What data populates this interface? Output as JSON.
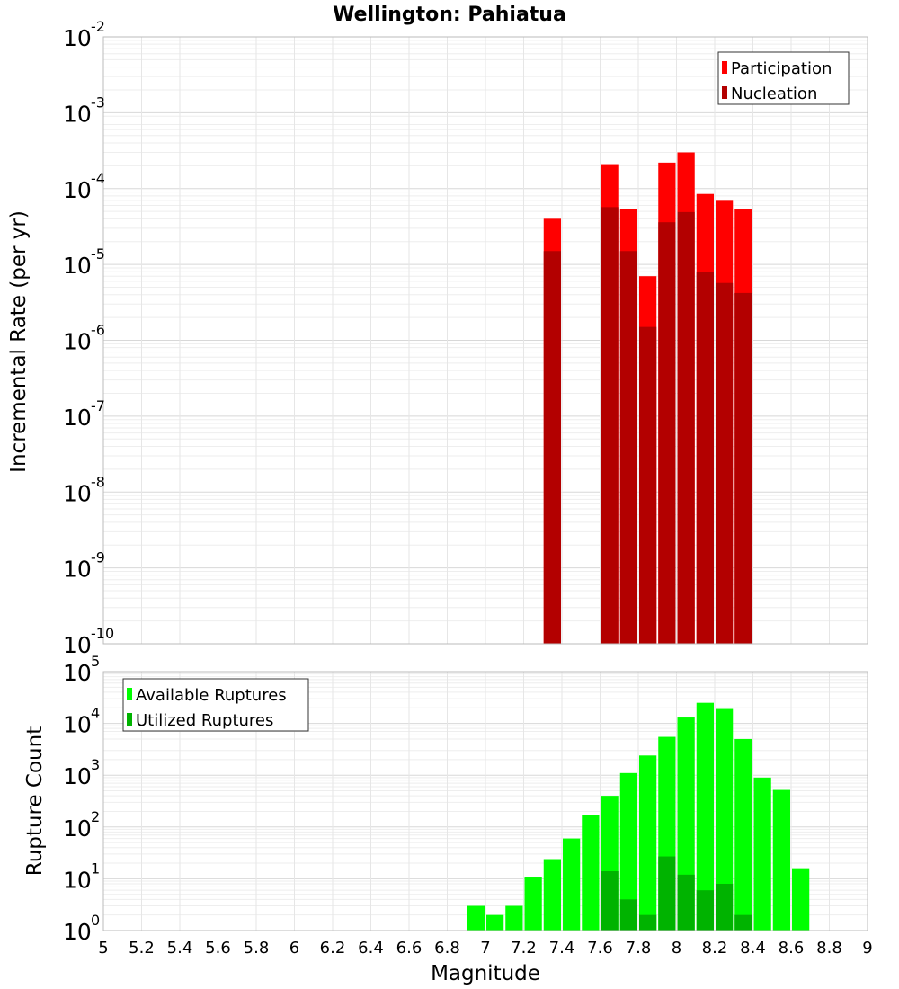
{
  "chart_data": {
    "title": "Wellington: Pahiatua",
    "xlabel": "Magnitude",
    "xlim": [
      5,
      9
    ],
    "xticks": [
      "5",
      "5.2",
      "5.4",
      "5.6",
      "5.8",
      "6",
      "6.2",
      "6.4",
      "6.6",
      "6.8",
      "7",
      "7.2",
      "7.4",
      "7.6",
      "7.8",
      "8",
      "8.2",
      "8.4",
      "8.6",
      "8.8",
      "9"
    ],
    "bin_width": 0.1,
    "charts": [
      {
        "type": "bar",
        "ylabel": "Incremental Rate (per yr)",
        "yscale": "log",
        "ylim_exp": [
          -10,
          -2
        ],
        "ytick_exps": [
          "-10",
          "-9",
          "-8",
          "-7",
          "-6",
          "-5",
          "-4",
          "-3",
          "-2"
        ],
        "legend": {
          "position": "top-right",
          "entries": [
            "Participation",
            "Nucleation"
          ]
        },
        "series": [
          {
            "name": "Participation",
            "color": "#ff0000",
            "x": [
              7.35,
              7.65,
              7.75,
              7.85,
              7.95,
              8.05,
              8.15,
              8.25,
              8.35
            ],
            "values": [
              4e-05,
              0.00021,
              5.4e-05,
              7e-06,
              0.00022,
              0.0003,
              8.5e-05,
              6.9e-05,
              5.3e-05
            ]
          },
          {
            "name": "Nucleation",
            "color": "#b30000",
            "x": [
              7.35,
              7.65,
              7.75,
              7.85,
              7.95,
              8.05,
              8.15,
              8.25,
              8.35
            ],
            "values": [
              1.5e-05,
              5.7e-05,
              1.5e-05,
              1.5e-06,
              3.6e-05,
              4.9e-05,
              8e-06,
              5.7e-06,
              4.2e-06
            ]
          }
        ]
      },
      {
        "type": "bar",
        "ylabel": "Rupture Count",
        "yscale": "log",
        "ylim_exp": [
          0,
          5
        ],
        "ytick_exps": [
          "0",
          "1",
          "2",
          "3",
          "4",
          "5"
        ],
        "legend": {
          "position": "top-left",
          "entries": [
            "Available Ruptures",
            "Utilized Ruptures"
          ]
        },
        "series": [
          {
            "name": "Available Ruptures",
            "color": "#00ff00",
            "x": [
              6.95,
              7.05,
              7.15,
              7.25,
              7.35,
              7.45,
              7.55,
              7.65,
              7.75,
              7.85,
              7.95,
              8.05,
              8.15,
              8.25,
              8.35,
              8.45,
              8.55,
              8.65
            ],
            "values": [
              3,
              2,
              3,
              11,
              24,
              60,
              170,
              400,
              1100,
              2400,
              5500,
              13000,
              25000,
              19000,
              5000,
              900,
              520,
              16
            ]
          },
          {
            "name": "Utilized Ruptures",
            "color": "#00b300",
            "x": [
              7.35,
              7.65,
              7.75,
              7.85,
              7.95,
              8.05,
              8.15,
              8.25,
              8.35
            ],
            "values": [
              1,
              14,
              4,
              2,
              27,
              12,
              6,
              8,
              2
            ]
          }
        ]
      }
    ]
  }
}
